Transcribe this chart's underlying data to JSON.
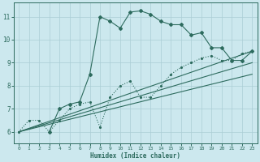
{
  "xlabel": "Humidex (Indice chaleur)",
  "background_color": "#cce8ee",
  "grid_color": "#aacdd5",
  "line_color": "#2d6b5e",
  "xlim": [
    -0.5,
    23.5
  ],
  "ylim": [
    5.5,
    11.6
  ],
  "yticks": [
    6,
    7,
    8,
    9,
    10,
    11
  ],
  "xticks": [
    0,
    1,
    2,
    3,
    4,
    5,
    6,
    7,
    8,
    9,
    10,
    11,
    12,
    13,
    14,
    15,
    16,
    17,
    18,
    19,
    20,
    21,
    22,
    23
  ],
  "curve_main_x": [
    3,
    4,
    5,
    6,
    7,
    8,
    9,
    10,
    11,
    12,
    13,
    14,
    15,
    16,
    17,
    18,
    19,
    20,
    21,
    22,
    23
  ],
  "curve_main_y": [
    6.0,
    7.0,
    7.2,
    7.3,
    8.5,
    11.0,
    10.8,
    10.5,
    11.2,
    11.25,
    11.1,
    10.8,
    10.65,
    10.65,
    10.2,
    10.3,
    9.65,
    9.65,
    9.1,
    9.1,
    9.5
  ],
  "curve_dot_x": [
    0,
    1,
    2,
    3,
    4,
    5,
    6,
    7,
    8,
    9,
    10,
    11,
    12,
    13,
    14,
    15,
    16,
    17,
    18,
    19,
    20,
    21,
    22,
    23
  ],
  "curve_dot_y": [
    6.0,
    6.5,
    6.5,
    6.0,
    6.5,
    7.0,
    7.2,
    7.3,
    6.2,
    7.5,
    8.0,
    8.2,
    7.5,
    7.5,
    8.0,
    8.5,
    8.8,
    9.0,
    9.2,
    9.3,
    9.1,
    9.1,
    9.4,
    9.5
  ],
  "ref_lines": [
    {
      "x": [
        0,
        23
      ],
      "y": [
        6.0,
        9.5
      ]
    },
    {
      "x": [
        0,
        23
      ],
      "y": [
        6.0,
        9.0
      ]
    },
    {
      "x": [
        0,
        23
      ],
      "y": [
        6.0,
        8.5
      ]
    }
  ]
}
